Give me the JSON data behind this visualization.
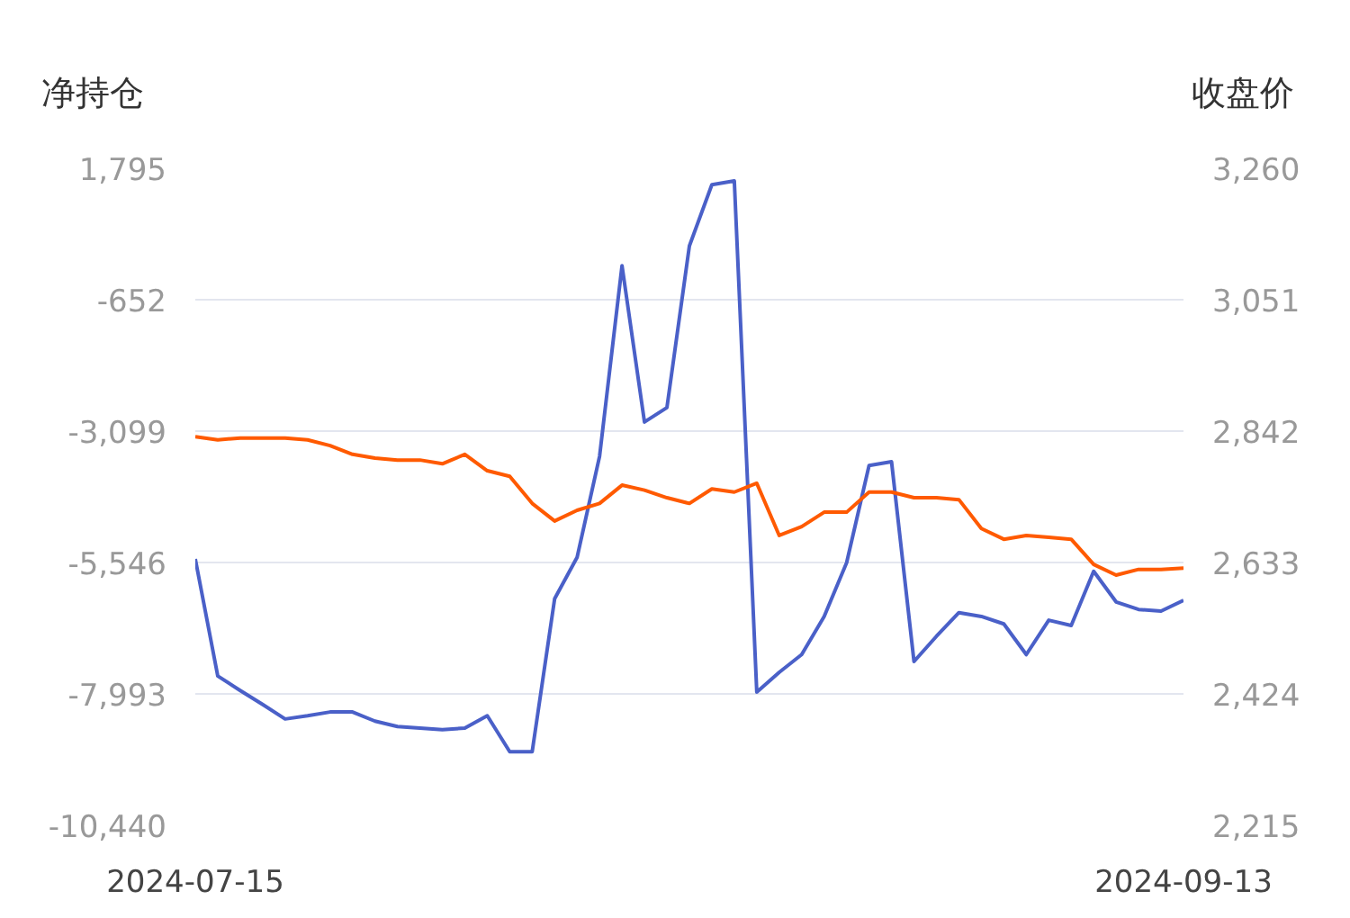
{
  "chart_data": {
    "type": "line",
    "ylabel": "净持仓",
    "y2label": "收盘价",
    "categories": [
      "2024-07-15",
      null,
      null,
      null,
      null,
      null,
      null,
      null,
      null,
      null,
      null,
      null,
      null,
      null,
      null,
      null,
      null,
      null,
      null,
      null,
      null,
      null,
      null,
      null,
      null,
      null,
      null,
      null,
      null,
      null,
      null,
      null,
      null,
      null,
      null,
      null,
      null,
      null,
      null,
      null,
      null,
      null,
      null,
      null,
      "2024-09-13"
    ],
    "ylim": [
      -10440,
      1795
    ],
    "yticks": [
      {
        "value": -10440,
        "label": "-10,440"
      },
      {
        "value": -7993,
        "label": "-7,993"
      },
      {
        "value": -5546,
        "label": "-5,546"
      },
      {
        "value": -3099,
        "label": "-3,099"
      },
      {
        "value": -652,
        "label": "-652"
      },
      {
        "value": 1795,
        "label": "1,795"
      }
    ],
    "y2lim": [
      2215,
      3260
    ],
    "y2ticks": [
      {
        "value": 2215,
        "label": "2,215"
      },
      {
        "value": 2424,
        "label": "2,424"
      },
      {
        "value": 2633,
        "label": "2,633"
      },
      {
        "value": 2842,
        "label": "2,842"
      },
      {
        "value": 3051,
        "label": "3,051"
      },
      {
        "value": 3260,
        "label": "3,260"
      }
    ],
    "grid": "y",
    "series": [
      {
        "color": "#4a60c8",
        "values": [
          -5480,
          -7660,
          -7930,
          -8190,
          -8460,
          -8400,
          -8330,
          -8330,
          -8500,
          -8600,
          -8630,
          -8660,
          -8630,
          -8400,
          -9070,
          -9070,
          -6220,
          -5450,
          -3570,
          -20,
          -2930,
          -2660,
          350,
          1490,
          1560,
          -7960,
          -7590,
          -7260,
          -6550,
          -5550,
          -3740,
          -3670,
          -7390,
          -6920,
          -6480,
          -6550,
          -6690,
          -7260,
          -6620,
          -6720,
          -5710,
          -6280,
          -6420,
          -6450,
          -6250
        ]
      },
      {
        "color": "#ff5a00",
        "axis": "y2",
        "values": [
          2833,
          2828,
          2831,
          2831,
          2831,
          2828,
          2819,
          2805,
          2799,
          2796,
          2796,
          2790,
          2805,
          2779,
          2770,
          2727,
          2699,
          2716,
          2727,
          2756,
          2748,
          2736,
          2727,
          2750,
          2745,
          2759,
          2676,
          2690,
          2713,
          2713,
          2745,
          2745,
          2736,
          2736,
          2733,
          2687,
          2670,
          2676,
          2673,
          2670,
          2630,
          2613,
          2622,
          2622,
          2624
        ]
      }
    ]
  }
}
